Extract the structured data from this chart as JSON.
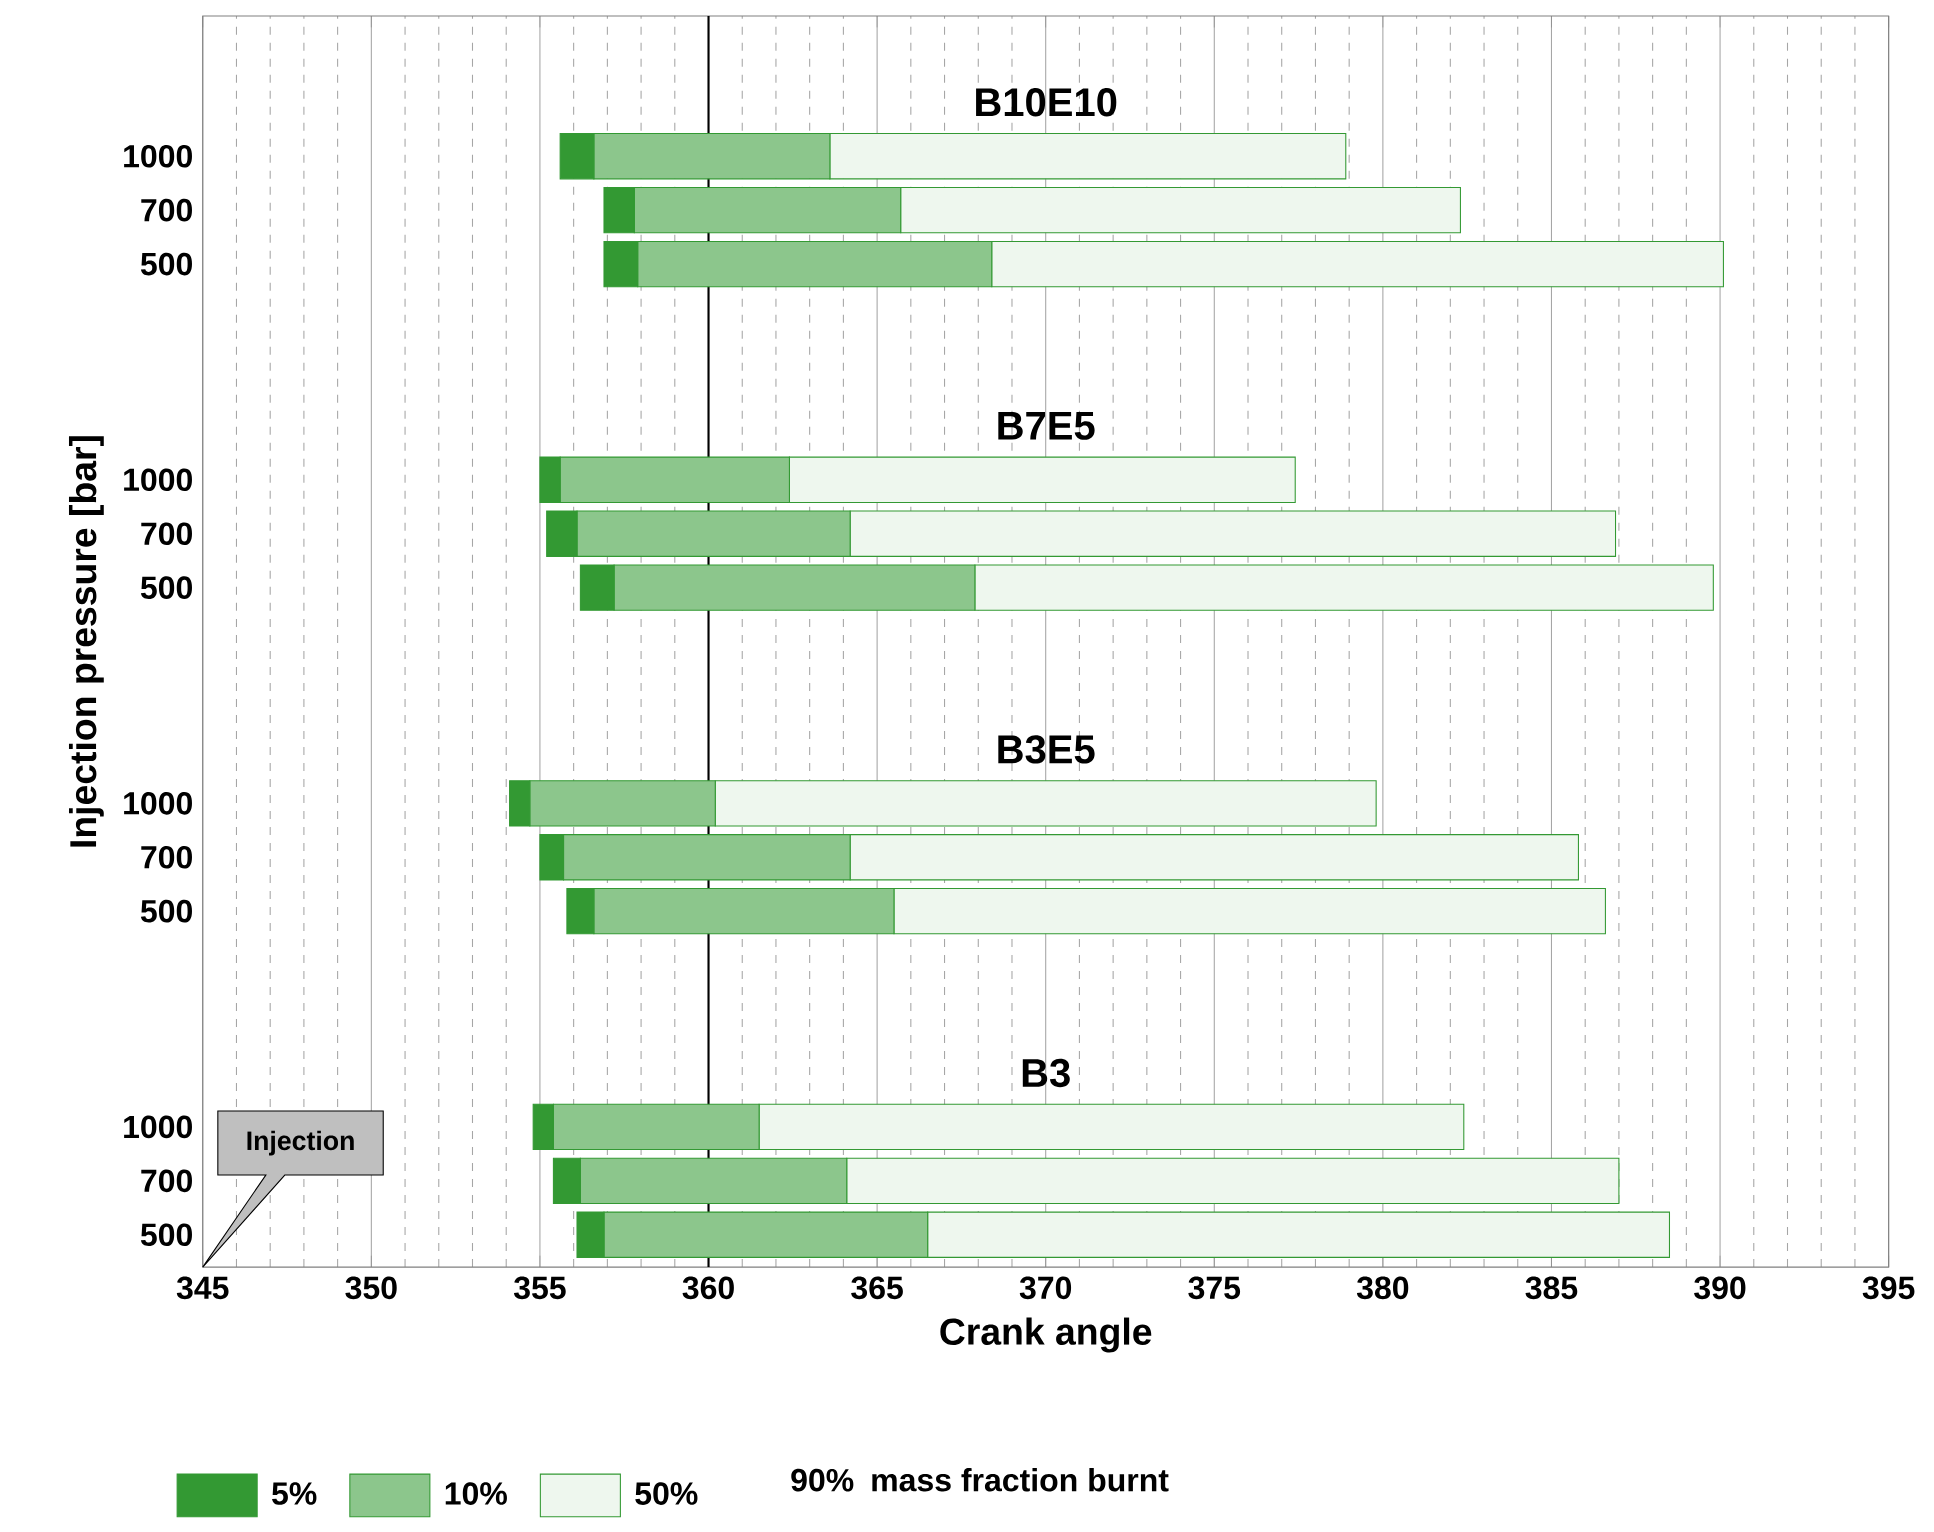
{
  "chart_data": {
    "type": "bar",
    "orientation": "horizontal",
    "xlabel": "Crank angle",
    "ylabel": "Injection pressure [bar]",
    "legend_title": "mass fraction burnt",
    "categories": [
      null,
      null,
      "1000",
      "700",
      "500",
      null,
      null,
      null,
      "1000",
      "700",
      "500",
      null,
      null,
      null,
      "1000",
      "700",
      "500",
      null,
      null,
      null,
      "1000",
      "700",
      "500"
    ],
    "series": [
      {
        "name": "5%",
        "color": "#339933",
        "base": [
          null,
          null,
          355.6,
          356.9,
          356.9,
          null,
          null,
          null,
          355.0,
          355.2,
          356.2,
          null,
          null,
          null,
          354.1,
          355.0,
          355.8,
          null,
          null,
          null,
          354.8,
          355.4,
          356.1
        ],
        "values": [
          null,
          null,
          1.0,
          0.9,
          1.0,
          null,
          null,
          null,
          0.6,
          0.9,
          1.0,
          null,
          null,
          null,
          0.6,
          0.7,
          0.8,
          null,
          null,
          null,
          0.6,
          0.8,
          0.8
        ]
      },
      {
        "name": "10%",
        "color": "#8cc68c",
        "base": [
          null,
          null,
          356.6,
          357.8,
          357.9,
          null,
          null,
          null,
          355.6,
          356.1,
          357.2,
          null,
          null,
          null,
          354.7,
          355.7,
          356.6,
          null,
          null,
          null,
          355.4,
          356.2,
          356.9
        ],
        "values": [
          null,
          null,
          7.0,
          7.9,
          10.5,
          null,
          null,
          null,
          6.8,
          8.1,
          10.7,
          null,
          null,
          null,
          5.5,
          8.5,
          8.9,
          null,
          null,
          null,
          6.1,
          7.9,
          9.6
        ]
      },
      {
        "name": "50%",
        "color": "#eef7ee",
        "base": [
          null,
          null,
          363.6,
          365.7,
          368.4,
          null,
          null,
          null,
          362.4,
          364.2,
          367.9,
          null,
          null,
          null,
          360.2,
          364.2,
          365.5,
          null,
          null,
          null,
          361.5,
          364.1,
          366.5
        ],
        "values": [
          null,
          null,
          15.3,
          16.6,
          21.7,
          null,
          null,
          null,
          15.0,
          22.7,
          21.9,
          null,
          null,
          null,
          19.6,
          21.6,
          21.1,
          null,
          null,
          null,
          20.9,
          22.9,
          22.0
        ]
      }
    ],
    "xlim": [
      345,
      395
    ],
    "xticks": [
      345,
      350,
      355,
      360,
      365,
      370,
      375,
      380,
      385,
      390,
      395
    ],
    "grid": "x",
    "legend": "bottom",
    "ref_lines": [
      {
        "axis": "x",
        "value": 360,
        "color": "#000000"
      }
    ],
    "annotations": [
      "B10E10",
      "B7E5",
      "B3E5",
      "B3",
      "Injection",
      "90%"
    ]
  }
}
